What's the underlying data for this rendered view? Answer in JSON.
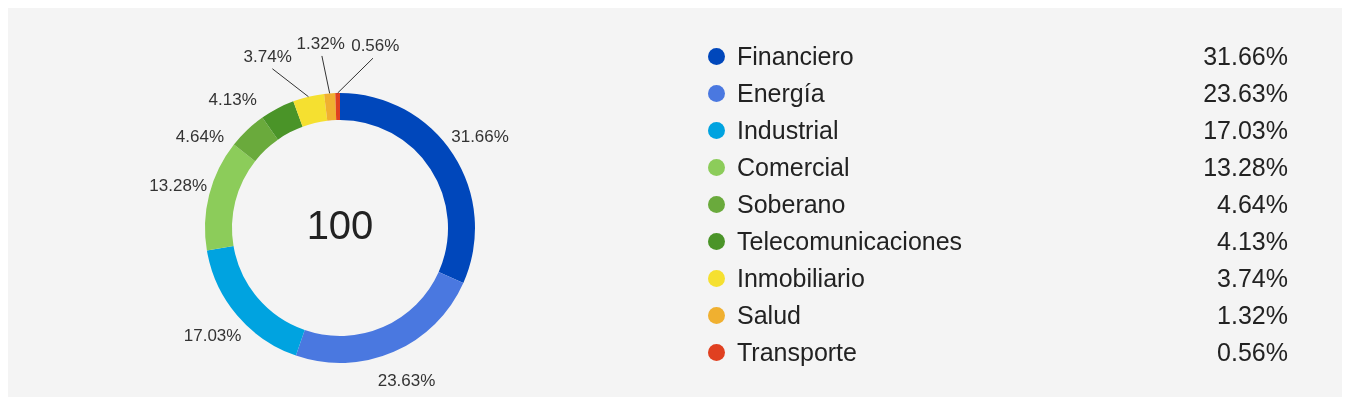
{
  "chart_data": {
    "type": "donut",
    "categories": [
      "Financiero",
      "Energía",
      "Industrial",
      "Comercial",
      "Soberano",
      "Telecomunicaciones",
      "Inmobiliario",
      "Salud",
      "Transporte"
    ],
    "values": [
      31.66,
      23.63,
      17.03,
      13.28,
      4.64,
      4.13,
      3.74,
      1.32,
      0.56
    ],
    "value_labels": [
      "31.66%",
      "23.63%",
      "17.03%",
      "13.28%",
      "4.64%",
      "4.13%",
      "3.74%",
      "1.32%",
      "0.56%"
    ],
    "colors": [
      "#0047bb",
      "#4a78e0",
      "#00a3e0",
      "#8ccc5a",
      "#6aaa3c",
      "#4a9428",
      "#f5e030",
      "#f0b030",
      "#e04020"
    ],
    "annotations": [
      "100"
    ],
    "legend": "right"
  }
}
